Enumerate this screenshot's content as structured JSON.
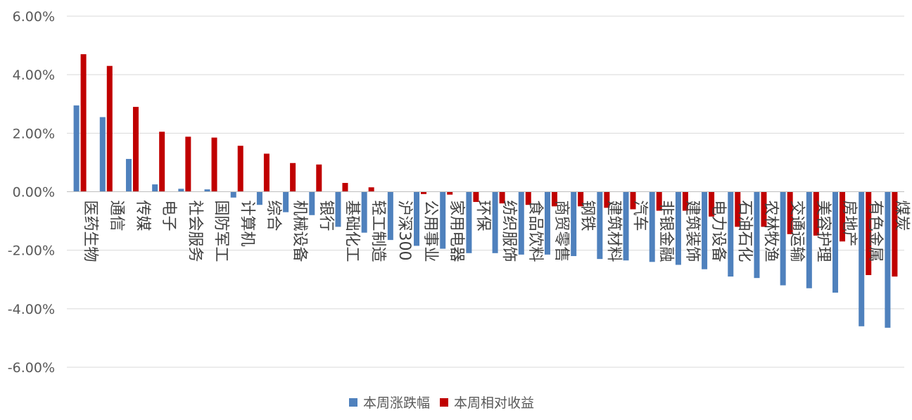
{
  "chart_data": {
    "type": "bar",
    "ylim": [
      -0.06,
      0.06
    ],
    "y_ticks": [
      "6.00%",
      "4.00%",
      "2.00%",
      "0.00%",
      "-2.00%",
      "-4.00%",
      "-6.00%"
    ],
    "grid": true,
    "legend_position": "bottom",
    "categories": [
      "医药生物",
      "通信",
      "传媒",
      "电子",
      "社会服务",
      "国防军工",
      "计算机",
      "综合",
      "机械设备",
      "银行",
      "基础化工",
      "轻工制造",
      "沪深300",
      "公用事业",
      "家用电器",
      "环保",
      "纺织服饰",
      "食品饮料",
      "商贸零售",
      "钢铁",
      "建筑材料",
      "汽车",
      "非银金融",
      "建筑装饰",
      "电力设备",
      "石油石化",
      "农林牧渔",
      "交通运输",
      "美容护理",
      "房地产",
      "有色金属",
      "煤炭"
    ],
    "series": [
      {
        "name": "本周涨跌幅",
        "color": "#4f81bd",
        "values": [
          0.0295,
          0.0255,
          0.0112,
          0.0025,
          0.001,
          0.0008,
          -0.002,
          -0.0045,
          -0.007,
          -0.008,
          -0.012,
          -0.014,
          -0.0165,
          -0.0185,
          -0.0195,
          -0.021,
          -0.021,
          -0.0215,
          -0.0215,
          -0.022,
          -0.023,
          -0.0235,
          -0.024,
          -0.025,
          -0.0265,
          -0.029,
          -0.0295,
          -0.032,
          -0.033,
          -0.0345,
          -0.046,
          -0.0465
        ]
      },
      {
        "name": "本周相对收益",
        "color": "#c00000",
        "values": [
          0.047,
          0.043,
          0.029,
          0.0205,
          0.0188,
          0.0185,
          0.0157,
          0.013,
          0.0098,
          0.0093,
          0.003,
          0.0015,
          0.0,
          -0.0008,
          -0.001,
          -0.0035,
          -0.004,
          -0.0045,
          -0.005,
          -0.005,
          -0.0055,
          -0.006,
          -0.0065,
          -0.0065,
          -0.0085,
          -0.012,
          -0.012,
          -0.0145,
          -0.015,
          -0.017,
          -0.0285,
          -0.029
        ]
      }
    ]
  }
}
